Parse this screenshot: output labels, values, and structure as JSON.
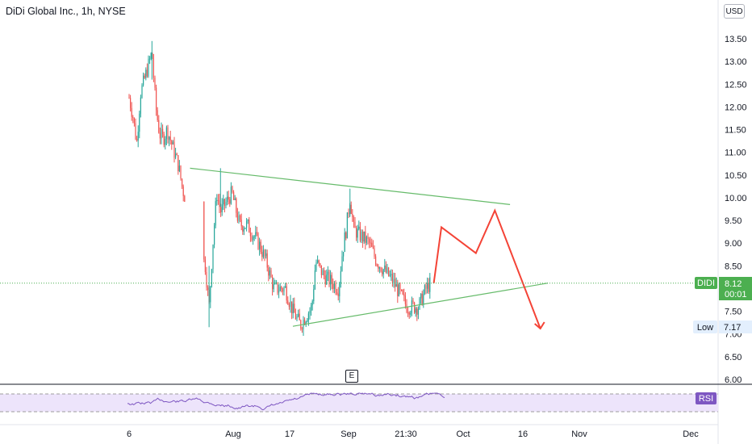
{
  "header": {
    "title": "DiDi Global Inc., 1h, NYSE",
    "currency": "USD"
  },
  "event_marker": "E",
  "price_tags": {
    "symbol": "DIDI",
    "last_price": "8.12",
    "countdown": "00:01",
    "low_label": "Low",
    "low_value": "7.17",
    "rsi_label": "RSI"
  },
  "colors": {
    "up": "#26a69a",
    "down": "#ef5350",
    "trendline": "#66bb6a",
    "projection": "#f44336",
    "last_price_tag": "#4caf50",
    "low_tag": "#e3effd",
    "rsi_line": "#7e57c2",
    "rsi_band": "#ede4fb"
  },
  "chart_data": {
    "type": "candlestick",
    "title": "DiDi Global Inc., 1h, NYSE",
    "y_axis_ticks": [
      "13.50",
      "13.00",
      "12.50",
      "12.00",
      "11.50",
      "11.00",
      "10.50",
      "10.00",
      "9.50",
      "9.00",
      "8.50",
      "8.00",
      "7.50",
      "7.00",
      "6.50",
      "6.00"
    ],
    "x_axis_ticks": [
      "6",
      "Aug",
      "17",
      "Sep",
      "21:30",
      "Oct",
      "16",
      "Nov",
      "Dec"
    ],
    "ylim": [
      6.0,
      13.5
    ],
    "close_path_approx": [
      {
        "x": "Jul 6",
        "y": 12.2
      },
      {
        "x": "Jul 7",
        "y": 11.8
      },
      {
        "x": "Jul 8",
        "y": 11.2
      },
      {
        "x": "Jul 9",
        "y": 12.3
      },
      {
        "x": "Jul 12",
        "y": 13.2
      },
      {
        "x": "Jul 13",
        "y": 12.0
      },
      {
        "x": "Jul 14",
        "y": 11.4
      },
      {
        "x": "Jul 15",
        "y": 11.3
      },
      {
        "x": "Jul 16",
        "y": 11.5
      },
      {
        "x": "Jul 19",
        "y": 10.7
      },
      {
        "x": "Jul 20",
        "y": 10.2
      },
      {
        "x": "Jul 26",
        "y": 8.5
      },
      {
        "x": "Jul 27",
        "y": 7.6
      },
      {
        "x": "Jul 28",
        "y": 9.0
      },
      {
        "x": "Jul 29",
        "y": 10.1
      },
      {
        "x": "Jul 30",
        "y": 9.7
      },
      {
        "x": "Aug 2",
        "y": 10.1
      },
      {
        "x": "Aug 4",
        "y": 9.4
      },
      {
        "x": "Aug 6",
        "y": 9.4
      },
      {
        "x": "Aug 9",
        "y": 9.0
      },
      {
        "x": "Aug 11",
        "y": 8.6
      },
      {
        "x": "Aug 13",
        "y": 8.0
      },
      {
        "x": "Aug 16",
        "y": 8.0
      },
      {
        "x": "Aug 18",
        "y": 7.5
      },
      {
        "x": "Aug 20",
        "y": 7.2
      },
      {
        "x": "Aug 23",
        "y": 7.6
      },
      {
        "x": "Aug 24",
        "y": 8.6
      },
      {
        "x": "Aug 26",
        "y": 8.3
      },
      {
        "x": "Aug 30",
        "y": 8.0
      },
      {
        "x": "Aug 31",
        "y": 8.8
      },
      {
        "x": "Sep 1",
        "y": 9.3
      },
      {
        "x": "Sep 2",
        "y": 10.0
      },
      {
        "x": "Sep 3",
        "y": 9.3
      },
      {
        "x": "Sep 7",
        "y": 9.0
      },
      {
        "x": "Sep 9",
        "y": 8.6
      },
      {
        "x": "Sep 13",
        "y": 8.2
      },
      {
        "x": "Sep 15",
        "y": 7.9
      },
      {
        "x": "Sep 17",
        "y": 7.6
      },
      {
        "x": "Sep 20",
        "y": 7.6
      },
      {
        "x": "Sep 22",
        "y": 8.0
      },
      {
        "x": "Sep 23",
        "y": 8.1
      }
    ],
    "series": [
      {
        "name": "DIDI",
        "last": 8.12,
        "low": 7.17
      }
    ],
    "drawings": [
      {
        "type": "trendline",
        "from": {
          "x": "Jul 22",
          "y": 10.65
        },
        "to": {
          "x": "Oct 14",
          "y": 9.85
        }
      },
      {
        "type": "trendline",
        "from": {
          "x": "Aug 18",
          "y": 7.17
        },
        "to": {
          "x": "Oct 24",
          "y": 8.12
        }
      },
      {
        "type": "projection",
        "points": [
          {
            "x": "Sep 24",
            "y": 8.12
          },
          {
            "x": "Sep 26",
            "y": 9.35
          },
          {
            "x": "Oct 5",
            "y": 8.78
          },
          {
            "x": "Oct 10",
            "y": 9.72
          },
          {
            "x": "Oct 22",
            "y": 7.12
          }
        ]
      }
    ],
    "last_price_line": 8.12,
    "indicator": {
      "name": "RSI",
      "upper": 70,
      "lower": 30
    }
  }
}
